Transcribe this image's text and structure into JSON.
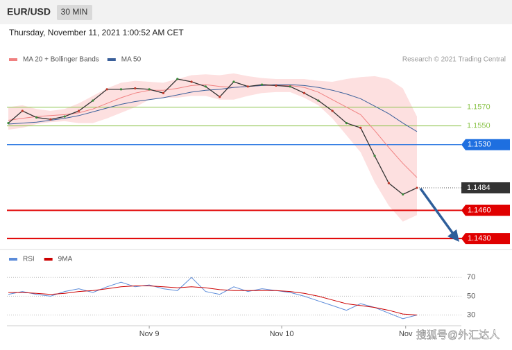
{
  "header": {
    "symbol": "EUR/USD",
    "interval": "30 MIN",
    "datetime": "Thursday, November 11, 2021 1:00:52 AM CET"
  },
  "credit": "Research © 2021 Trading Central",
  "watermark": "搜狐号@外汇达人",
  "chart_data": [
    {
      "type": "line",
      "color": "#333333",
      "xlim": [
        0,
        29
      ],
      "ylim": [
        1.1422,
        1.1614
      ],
      "values": [
        1.1553,
        1.1566,
        1.1559,
        1.1557,
        1.156,
        1.1566,
        1.1577,
        1.1589,
        1.1589,
        1.159,
        1.1589,
        1.1585,
        1.16,
        1.1597,
        1.1592,
        1.1581,
        1.1597,
        1.1592,
        1.1594,
        1.1593,
        1.1592,
        1.1585,
        1.1577,
        1.1566,
        1.1553,
        1.1548,
        1.1518,
        1.1489,
        1.1477,
        1.1484
      ],
      "series": [
        {
          "name": "MA 20 + Bollinger Bands",
          "color": "#f08080",
          "band_color": "#fde0e0",
          "values": [
            1.1556,
            1.1558,
            1.156,
            1.1561,
            1.1562,
            1.1564,
            1.1568,
            1.1574,
            1.158,
            1.1585,
            1.1588,
            1.1588,
            1.159,
            1.1593,
            1.1594,
            1.1592,
            1.1591,
            1.1592,
            1.1593,
            1.1593,
            1.1593,
            1.1591,
            1.1586,
            1.1578,
            1.157,
            1.1562,
            1.1545,
            1.1527,
            1.151,
            1.1495
          ],
          "upper": [
            1.157,
            1.1572,
            1.1568,
            1.1566,
            1.1568,
            1.1574,
            1.1582,
            1.159,
            1.1596,
            1.1598,
            1.1597,
            1.1596,
            1.16,
            1.1604,
            1.1605,
            1.1604,
            1.1606,
            1.1603,
            1.1601,
            1.16,
            1.16,
            1.16,
            1.1598,
            1.1597,
            1.16,
            1.1602,
            1.1603,
            1.16,
            1.159,
            1.156
          ],
          "lower": [
            1.1546,
            1.1548,
            1.1552,
            1.1554,
            1.1555,
            1.1553,
            1.1553,
            1.1558,
            1.1564,
            1.157,
            1.1578,
            1.158,
            1.158,
            1.1582,
            1.1582,
            1.1578,
            1.1578,
            1.1582,
            1.1585,
            1.1586,
            1.1586,
            1.158,
            1.1572,
            1.1558,
            1.154,
            1.1522,
            1.149,
            1.1465,
            1.1448,
            1.1455
          ]
        },
        {
          "name": "MA 50",
          "color": "#3a5f9a",
          "values": [
            1.1552,
            1.1553,
            1.1554,
            1.1556,
            1.1558,
            1.1561,
            1.1565,
            1.1569,
            1.1573,
            1.1576,
            1.1578,
            1.158,
            1.1583,
            1.1586,
            1.1588,
            1.1589,
            1.1591,
            1.1592,
            1.1593,
            1.1594,
            1.1594,
            1.1593,
            1.1591,
            1.1588,
            1.1584,
            1.1579,
            1.1571,
            1.1563,
            1.1553,
            1.1544
          ]
        }
      ],
      "levels": [
        {
          "value": 1.157,
          "label": "1.1570",
          "color": "#8bc34a",
          "style": "text"
        },
        {
          "value": 1.155,
          "label": "1.1550",
          "color": "#8bc34a",
          "style": "text"
        },
        {
          "value": 1.153,
          "label": "1.1530",
          "color": "#1e6fe0",
          "style": "tag"
        },
        {
          "value": 1.1484,
          "label": "1.1484",
          "color": "#333333",
          "style": "current"
        },
        {
          "value": 1.146,
          "label": "1.1460",
          "color": "#e00000",
          "style": "tag"
        },
        {
          "value": 1.143,
          "label": "1.1430",
          "color": "#e00000",
          "style": "tag"
        }
      ]
    },
    {
      "type": "line",
      "xlim": [
        0,
        29
      ],
      "ylim": [
        20,
        85
      ],
      "yticks": [
        30,
        50,
        70
      ],
      "xticks": [
        {
          "value": 10,
          "label": "Nov 9"
        },
        {
          "value": 19.4,
          "label": "Nov 10"
        },
        {
          "value": 28.2,
          "label": "Nov"
        }
      ],
      "series": [
        {
          "name": "RSI",
          "color": "#5b8bd9",
          "values": [
            52,
            55,
            52,
            50,
            55,
            58,
            54,
            60,
            65,
            60,
            62,
            58,
            56,
            70,
            55,
            52,
            60,
            55,
            58,
            56,
            54,
            50,
            45,
            40,
            35,
            42,
            38,
            32,
            26,
            30
          ]
        },
        {
          "name": "9MA",
          "color": "#cc0000",
          "values": [
            54,
            54,
            53,
            52,
            53,
            55,
            56,
            58,
            60,
            61,
            61,
            60,
            59,
            60,
            59,
            57,
            56,
            56,
            56,
            56,
            55,
            53,
            50,
            46,
            42,
            40,
            38,
            35,
            31,
            30
          ]
        }
      ]
    }
  ]
}
